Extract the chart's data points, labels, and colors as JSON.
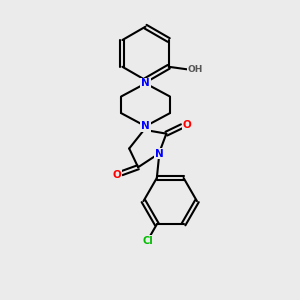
{
  "background_color": "#ebebeb",
  "bond_color": "#000000",
  "bond_width": 1.5,
  "atom_colors": {
    "N": "#0000ff",
    "O": "#ff0000",
    "Cl": "#00bb00",
    "H": "#555555",
    "C": "#000000"
  },
  "figsize": [
    3.0,
    3.0
  ],
  "dpi": 100,
  "xlim": [
    0,
    10
  ],
  "ylim": [
    0,
    10
  ]
}
